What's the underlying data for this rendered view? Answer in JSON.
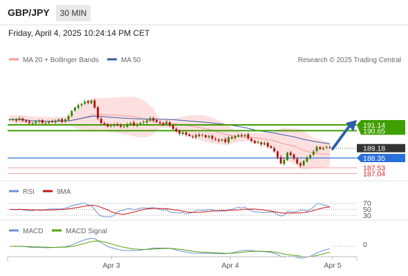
{
  "header": {
    "symbol": "GBP/JPY",
    "timeframe": "30 MIN",
    "datetime": "Friday, April 4, 2025 10:24:14 PM CET"
  },
  "legend": {
    "bollinger": "MA 20 + Bollinger Bands",
    "ma50": "MA 50",
    "credit": "Research © 2025 Trading Central"
  },
  "levels": [
    {
      "id": "r1",
      "value": "191.14",
      "color": "#3f9e00",
      "style": "resistance"
    },
    {
      "id": "r2",
      "value": "190.65",
      "color": "#3f9e00",
      "style": "resistance"
    },
    {
      "id": "last",
      "value": "189.18",
      "color": "#333333",
      "style": "last"
    },
    {
      "id": "pivot",
      "value": "188.35",
      "color": "#2b6fd9",
      "style": "pivot"
    },
    {
      "id": "s1",
      "value": "187.53",
      "color": "#e06060",
      "style": "support"
    },
    {
      "id": "s2",
      "value": "187.04",
      "color": "#e06060",
      "style": "support"
    }
  ],
  "rsi": {
    "label": "RSI",
    "signal_label": "9MA",
    "ticks": [
      "70",
      "50",
      "30"
    ]
  },
  "macd": {
    "label": "MACD",
    "signal_label": "MACD Signal",
    "ticks": [
      "0"
    ]
  },
  "xaxis": {
    "ticks": [
      "Apr 3",
      "Apr 4",
      "Apr 5"
    ]
  },
  "colors": {
    "bull": "#3a7d00",
    "bear": "#b01010",
    "band_fill": "#fbdada",
    "ma20": "#f29a9a",
    "ma50": "#3b5aa8",
    "rsi_line": "#6b8fd6",
    "rsi_ma": "#cc1111",
    "macd_line": "#6b8fd6",
    "macd_signal": "#55a000"
  },
  "chart_data": {
    "type": "candlestick",
    "symbol": "GBP/JPY",
    "interval": "30 MIN",
    "x_ticks": [
      "Apr 3",
      "Apr 4",
      "Apr 5"
    ],
    "close_series_approx": [
      191.6,
      191.6,
      191.5,
      191.7,
      191.5,
      191.4,
      191.3,
      191.3,
      191.4,
      191.5,
      191.3,
      191.3,
      191.4,
      191.4,
      191.5,
      191.6,
      191.4,
      191.6,
      191.9,
      192.3,
      192.6,
      192.8,
      192.9,
      193.1,
      193.0,
      193.2,
      192.6,
      191.7,
      191.3,
      191.2,
      191.0,
      191.1,
      191.2,
      191.1,
      191.0,
      191.0,
      191.2,
      191.3,
      191.1,
      191.2,
      191.3,
      191.4,
      191.5,
      191.7,
      191.5,
      191.4,
      191.3,
      191.2,
      191.4,
      191.1,
      190.8,
      190.6,
      190.4,
      190.5,
      190.3,
      190.2,
      190.1,
      190.3,
      190.2,
      190.3,
      190.1,
      190.2,
      190.0,
      189.9,
      189.8,
      189.9,
      189.7,
      190.1,
      190.0,
      190.2,
      190.3,
      190.2,
      190.3,
      190.0,
      189.8,
      189.6,
      189.7,
      189.5,
      189.6,
      189.3,
      189.2,
      188.9,
      188.4,
      187.9,
      188.2,
      188.8,
      188.6,
      188.3,
      187.9,
      187.7,
      188.1,
      188.4,
      188.6,
      188.9,
      189.3,
      189.1,
      189.2,
      189.3,
      189.2
    ],
    "y_ticks_right": [
      "191.14",
      "190.65",
      "189.18",
      "188.35",
      "187.53",
      "187.04"
    ],
    "levels": {
      "resistance": [
        191.14,
        190.65
      ],
      "last": 189.18,
      "pivot": 188.35,
      "support": [
        187.53,
        187.04
      ]
    },
    "indicators": [
      "MA 20 + Bollinger Bands",
      "MA 50",
      "RSI",
      "9MA",
      "MACD",
      "MACD Signal"
    ],
    "rsi_ticks": [
      70,
      50,
      30
    ],
    "macd_ticks": [
      0
    ],
    "forecast": "up"
  }
}
